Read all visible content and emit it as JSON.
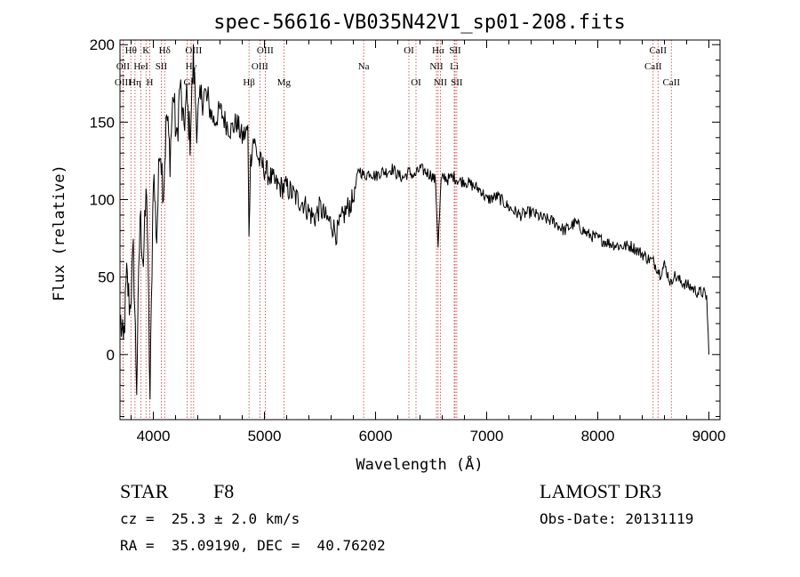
{
  "chart_data": {
    "type": "line",
    "title": "spec-56616-VB035N42V1_sp01-208.fits",
    "xlabel": "Wavelength (Å)",
    "ylabel": "Flux (relative)",
    "xlim": [
      3700,
      9100
    ],
    "ylim": [
      -42,
      203
    ],
    "xticks": [
      4000,
      5000,
      6000,
      7000,
      8000,
      9000
    ],
    "yticks": [
      0,
      50,
      100,
      150,
      200
    ],
    "series": [
      {
        "name": "spectrum",
        "x": [
          3700,
          3730,
          3760,
          3790,
          3820,
          3850,
          3880,
          3910,
          3940,
          3970,
          4000,
          4030,
          4060,
          4090,
          4120,
          4150,
          4180,
          4210,
          4240,
          4270,
          4300,
          4330,
          4360,
          4390,
          4420,
          4450,
          4500,
          4550,
          4600,
          4650,
          4700,
          4750,
          4800,
          4850,
          4861,
          4875,
          4900,
          4950,
          5000,
          5050,
          5100,
          5150,
          5200,
          5250,
          5300,
          5350,
          5400,
          5450,
          5500,
          5550,
          5600,
          5650,
          5700,
          5750,
          5800,
          5850,
          5900,
          5950,
          6000,
          6050,
          6100,
          6150,
          6200,
          6250,
          6300,
          6350,
          6400,
          6450,
          6500,
          6540,
          6563,
          6590,
          6620,
          6650,
          6700,
          6750,
          6800,
          6850,
          6900,
          6950,
          7000,
          7100,
          7200,
          7300,
          7400,
          7500,
          7600,
          7700,
          7800,
          7900,
          8000,
          8100,
          8200,
          8300,
          8400,
          8450,
          8500,
          8542,
          8560,
          8600,
          8662,
          8680,
          8700,
          8750,
          8800,
          8850,
          8900,
          8950,
          8980,
          9000
        ],
        "values": [
          25,
          5,
          50,
          30,
          65,
          -20,
          90,
          60,
          110,
          -30,
          120,
          75,
          140,
          105,
          155,
          128,
          170,
          135,
          175,
          145,
          165,
          140,
          190,
          150,
          160,
          170,
          160,
          150,
          158,
          150,
          145,
          150,
          140,
          145,
          80,
          125,
          140,
          125,
          120,
          115,
          110,
          108,
          108,
          104,
          100,
          98,
          92,
          88,
          95,
          88,
          85,
          78,
          88,
          95,
          100,
          120,
          115,
          118,
          115,
          118,
          118,
          120,
          116,
          114,
          118,
          115,
          120,
          118,
          116,
          112,
          70,
          112,
          115,
          113,
          115,
          112,
          112,
          110,
          108,
          106,
          100,
          102,
          95,
          90,
          92,
          88,
          86,
          80,
          85,
          78,
          75,
          72,
          70,
          70,
          65,
          62,
          60,
          55,
          52,
          58,
          45,
          52,
          50,
          47,
          45,
          43,
          40,
          40,
          37,
          0
        ]
      }
    ],
    "lines": [
      {
        "name": "Hθ",
        "x": 3798,
        "row": 1
      },
      {
        "name": "OII",
        "x": 3727,
        "row": 2
      },
      {
        "name": "OIII",
        "x": 3727,
        "row": 3
      },
      {
        "name": "K",
        "x": 3934,
        "row": 1
      },
      {
        "name": "HeI",
        "x": 3889,
        "row": 2
      },
      {
        "name": "Hη",
        "x": 3835,
        "row": 3
      },
      {
        "name": "SII",
        "x": 4072,
        "row": 2
      },
      {
        "name": "H",
        "x": 3968,
        "row": 3
      },
      {
        "name": "Hδ",
        "x": 4102,
        "row": 1
      },
      {
        "name": "OIII",
        "x": 4363,
        "row": 1
      },
      {
        "name": "Hγ",
        "x": 4340,
        "row": 2
      },
      {
        "name": "G",
        "x": 4304,
        "row": 3
      },
      {
        "name": "OIII",
        "x": 5007,
        "row": 1
      },
      {
        "name": "OIII",
        "x": 4959,
        "row": 2
      },
      {
        "name": "Hβ",
        "x": 4861,
        "row": 3
      },
      {
        "name": "Mg",
        "x": 5175,
        "row": 3
      },
      {
        "name": "Na",
        "x": 5893,
        "row": 2
      },
      {
        "name": "OI",
        "x": 6300,
        "row": 1
      },
      {
        "name": "OI",
        "x": 6364,
        "row": 3
      },
      {
        "name": "Hα",
        "x": 6563,
        "row": 1
      },
      {
        "name": "SII",
        "x": 6716,
        "row": 1
      },
      {
        "name": "NII",
        "x": 6548,
        "row": 2
      },
      {
        "name": "Li",
        "x": 6708,
        "row": 2
      },
      {
        "name": "NII",
        "x": 6583,
        "row": 3
      },
      {
        "name": "SII",
        "x": 6731,
        "row": 3
      },
      {
        "name": "CaII",
        "x": 8542,
        "row": 1
      },
      {
        "name": "CaII",
        "x": 8498,
        "row": 2
      },
      {
        "name": "CaII",
        "x": 8662,
        "row": 3
      }
    ],
    "line_color": "#cc3333",
    "data_color": "#000000"
  },
  "info": {
    "object_class": "STAR",
    "subclass": "F8",
    "survey": "LAMOST DR3",
    "redshift": "cz =  25.3 ± 2.0 km/s",
    "obs_date": "Obs-Date: 20131119",
    "coords": "RA =  35.09190, DEC =  40.76202"
  }
}
